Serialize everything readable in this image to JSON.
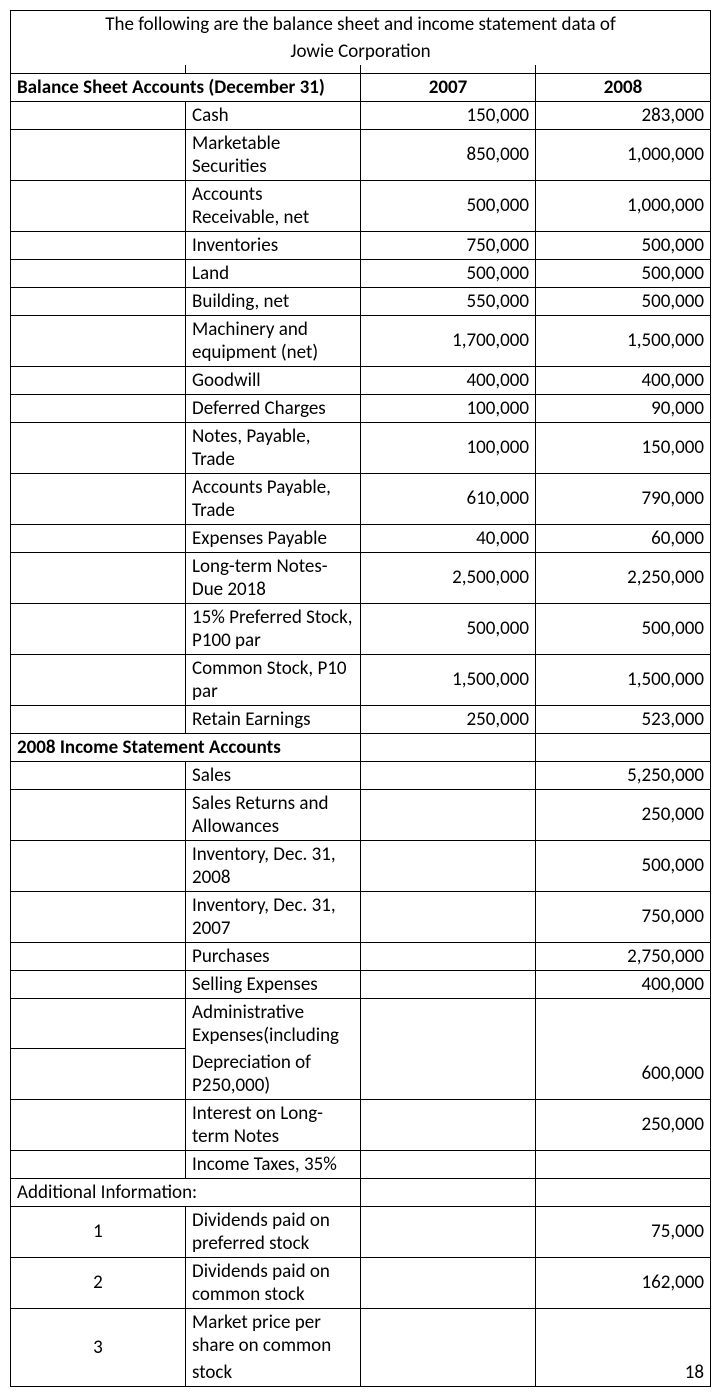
{
  "intro_line1": "The following are the balance sheet and income statement data of",
  "intro_line2": "Jowie Corporation",
  "headers": {
    "balance_sheet": "Balance Sheet Accounts (December 31)",
    "year1": "2007",
    "year2": "2008",
    "income_statement": "2008 Income Statement Accounts",
    "additional_info": "Additional Information:"
  },
  "balance_sheet_rows": [
    {
      "label": "Cash",
      "y1": "150,000",
      "y2": "283,000"
    },
    {
      "label": "Marketable Securities",
      "y1": "850,000",
      "y2": "1,000,000"
    },
    {
      "label": "Accounts Receivable, net",
      "y1": "500,000",
      "y2": "1,000,000"
    },
    {
      "label": "Inventories",
      "y1": "750,000",
      "y2": "500,000"
    },
    {
      "label": "Land",
      "y1": "500,000",
      "y2": "500,000"
    },
    {
      "label": "Building, net",
      "y1": "550,000",
      "y2": "500,000"
    },
    {
      "label": "Machinery and equipment (net)",
      "y1": "1,700,000",
      "y2": "1,500,000"
    },
    {
      "label": "Goodwill",
      "y1": "400,000",
      "y2": "400,000"
    },
    {
      "label": "Deferred Charges",
      "y1": "100,000",
      "y2": "90,000"
    },
    {
      "label": "Notes, Payable, Trade",
      "y1": "100,000",
      "y2": "150,000"
    },
    {
      "label": "Accounts Payable, Trade",
      "y1": "610,000",
      "y2": "790,000"
    },
    {
      "label": "Expenses Payable",
      "y1": "40,000",
      "y2": "60,000"
    },
    {
      "label": "Long-term Notes- Due 2018",
      "y1": "2,500,000",
      "y2": "2,250,000"
    },
    {
      "label": "15% Preferred Stock, P100 par",
      "y1": "500,000",
      "y2": "500,000"
    },
    {
      "label": "Common Stock, P10 par",
      "y1": "1,500,000",
      "y2": "1,500,000"
    },
    {
      "label": "Retain Earnings",
      "y1": "250,000",
      "y2": "523,000"
    }
  ],
  "income_rows": [
    {
      "label": "Sales",
      "y1": "",
      "y2": "5,250,000"
    },
    {
      "label": "Sales Returns and Allowances",
      "y1": "",
      "y2": "250,000"
    },
    {
      "label": "Inventory, Dec. 31, 2008",
      "y1": "",
      "y2": "500,000"
    },
    {
      "label": "Inventory, Dec. 31, 2007",
      "y1": "",
      "y2": "750,000"
    },
    {
      "label": "Purchases",
      "y1": "",
      "y2": "2,750,000"
    },
    {
      "label": "Selling Expenses",
      "y1": "",
      "y2": "400,000"
    }
  ],
  "admin_exp_line1": "Administrative Expenses(including",
  "admin_exp_line2": "Depreciation of P250,000)",
  "admin_exp_val": "600,000",
  "interest_row": {
    "label": "Interest on Long-term Notes",
    "y2": "250,000"
  },
  "tax_row": {
    "label": "Income Taxes, 35%",
    "y2": ""
  },
  "additional_rows": [
    {
      "num": "1",
      "label": "Dividends paid on preferred stock",
      "y1": "",
      "y2": "75,000"
    },
    {
      "num": "2",
      "label": "Dividends paid on common stock",
      "y1": "",
      "y2": "162,000"
    }
  ],
  "market_price_num": "3",
  "market_price_line1": "Market price per share on common",
  "market_price_line2": "stock",
  "market_price_val": "18"
}
